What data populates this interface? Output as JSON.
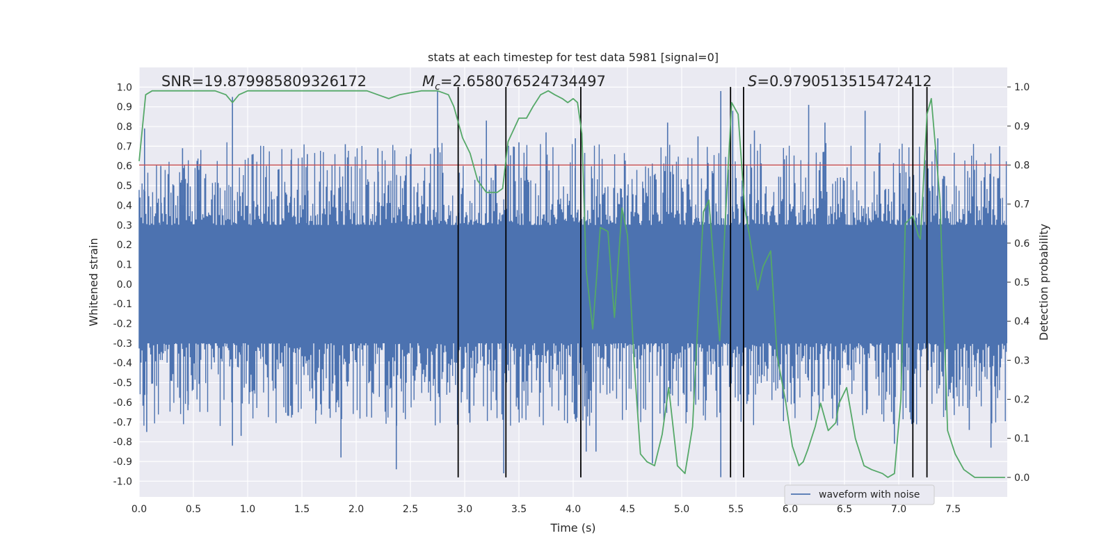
{
  "chart_data": {
    "type": "line",
    "title": "stats at each timestep for test data 5981 [signal=0]",
    "xlabel": "Time (s)",
    "ylabel_left": "Whitened strain",
    "ylabel_right": "Detection probability",
    "xlim": [
      0.0,
      8.0
    ],
    "ylim_left": [
      -1.08,
      1.1
    ],
    "ylim_right": [
      -0.05,
      1.05
    ],
    "x_ticks": [
      "0.0",
      "0.5",
      "1.0",
      "1.5",
      "2.0",
      "2.5",
      "3.0",
      "3.5",
      "4.0",
      "4.5",
      "5.0",
      "5.5",
      "6.0",
      "6.5",
      "7.0",
      "7.5"
    ],
    "y_ticks_left": [
      "1.0",
      "0.9",
      "0.8",
      "0.7",
      "0.6",
      "0.5",
      "0.4",
      "0.3",
      "0.2",
      "0.1",
      "0.0",
      "-0.1",
      "-0.2",
      "-0.3",
      "-0.4",
      "-0.5",
      "-0.6",
      "-0.7",
      "-0.8",
      "-0.9",
      "-1.0"
    ],
    "y_ticks_right": [
      "1.0",
      "0.9",
      "0.8",
      "0.7",
      "0.6",
      "0.5",
      "0.4",
      "0.3",
      "0.2",
      "0.1",
      "0.0"
    ],
    "grid": true,
    "annotations": {
      "snr": "SNR=19.879985809326172",
      "mc_symbol": "M",
      "mc_subscript": "c",
      "mc_value": "=2.658076524734497",
      "s_symbol": "S",
      "s_value": "=0.9790513515472412"
    },
    "threshold": {
      "value": 0.8,
      "color": "#c44e52"
    },
    "detection_lines_x": [
      2.94,
      3.38,
      4.07,
      5.45,
      5.57,
      7.13,
      7.26
    ],
    "series": [
      {
        "name": "waveform with noise",
        "color": "#4c72b0",
        "axis": "left",
        "core_amplitude": 0.3,
        "noise_seed": 5981,
        "noise_samples": 900,
        "spikes": [
          {
            "x": 0.05,
            "y": 0.79
          },
          {
            "x": 0.07,
            "y": -0.75
          },
          {
            "x": 0.2,
            "y": 0.6
          },
          {
            "x": 0.27,
            "y": 0.47
          },
          {
            "x": 0.4,
            "y": 0.69
          },
          {
            "x": 0.45,
            "y": -0.64
          },
          {
            "x": 0.55,
            "y": 0.58
          },
          {
            "x": 0.86,
            "y": 0.95
          },
          {
            "x": 0.86,
            "y": -0.82
          },
          {
            "x": 0.94,
            "y": -0.77
          },
          {
            "x": 1.05,
            "y": 0.66
          },
          {
            "x": 1.4,
            "y": 0.63
          },
          {
            "x": 1.55,
            "y": 0.66
          },
          {
            "x": 1.86,
            "y": -0.88
          },
          {
            "x": 1.9,
            "y": 0.71
          },
          {
            "x": 2.2,
            "y": 0.69
          },
          {
            "x": 2.37,
            "y": -0.94
          },
          {
            "x": 2.5,
            "y": 0.66
          },
          {
            "x": 2.72,
            "y": 0.69
          },
          {
            "x": 2.75,
            "y": 0.98
          },
          {
            "x": 3.2,
            "y": 0.83
          },
          {
            "x": 3.36,
            "y": -0.96
          },
          {
            "x": 3.5,
            "y": 0.72
          },
          {
            "x": 3.75,
            "y": 0.77
          },
          {
            "x": 4.02,
            "y": 0.74
          },
          {
            "x": 4.12,
            "y": -0.85
          },
          {
            "x": 4.21,
            "y": -0.85
          },
          {
            "x": 4.73,
            "y": -0.91
          },
          {
            "x": 4.87,
            "y": 0.82
          },
          {
            "x": 5.15,
            "y": 0.75
          },
          {
            "x": 5.36,
            "y": 0.98
          },
          {
            "x": 5.36,
            "y": -0.98
          },
          {
            "x": 5.47,
            "y": 0.88
          },
          {
            "x": 5.67,
            "y": 0.78
          },
          {
            "x": 6.17,
            "y": 0.91
          },
          {
            "x": 6.32,
            "y": 0.82
          },
          {
            "x": 6.69,
            "y": 0.88
          },
          {
            "x": 6.96,
            "y": -0.81
          },
          {
            "x": 7.12,
            "y": -0.71
          },
          {
            "x": 7.36,
            "y": 0.74
          },
          {
            "x": 7.65,
            "y": -0.74
          },
          {
            "x": 7.85,
            "y": -0.83
          },
          {
            "x": 7.93,
            "y": 0.7
          }
        ]
      },
      {
        "name": "detection probability",
        "color": "#55a868",
        "axis": "right",
        "x": [
          0.0,
          0.06,
          0.12,
          0.2,
          0.4,
          0.6,
          0.7,
          0.8,
          0.86,
          0.92,
          1.0,
          1.2,
          1.4,
          1.6,
          1.8,
          2.0,
          2.1,
          2.2,
          2.3,
          2.4,
          2.6,
          2.75,
          2.85,
          2.9,
          2.98,
          3.05,
          3.12,
          3.2,
          3.3,
          3.35,
          3.4,
          3.5,
          3.57,
          3.63,
          3.7,
          3.77,
          3.83,
          3.9,
          3.95,
          4.0,
          4.04,
          4.08,
          4.12,
          4.18,
          4.25,
          4.32,
          4.38,
          4.45,
          4.5,
          4.56,
          4.62,
          4.68,
          4.75,
          4.82,
          4.88,
          4.96,
          5.03,
          5.1,
          5.2,
          5.25,
          5.35,
          5.4,
          5.46,
          5.52,
          5.58,
          5.63,
          5.7,
          5.75,
          5.82,
          5.88,
          5.96,
          6.02,
          6.08,
          6.12,
          6.16,
          6.23,
          6.28,
          6.35,
          6.42,
          6.45,
          6.52,
          6.6,
          6.68,
          6.75,
          6.85,
          6.9,
          6.96,
          7.02,
          7.06,
          7.13,
          7.18,
          7.2,
          7.26,
          7.3,
          7.38,
          7.45,
          7.52,
          7.6,
          7.7,
          7.98
        ],
        "y": [
          0.81,
          0.98,
          0.99,
          0.99,
          0.99,
          0.99,
          0.99,
          0.98,
          0.96,
          0.98,
          0.99,
          0.99,
          0.99,
          0.99,
          0.99,
          0.99,
          0.99,
          0.98,
          0.97,
          0.98,
          0.99,
          0.99,
          0.98,
          0.95,
          0.87,
          0.83,
          0.76,
          0.73,
          0.73,
          0.74,
          0.86,
          0.92,
          0.92,
          0.95,
          0.98,
          0.99,
          0.98,
          0.97,
          0.96,
          0.97,
          0.96,
          0.88,
          0.53,
          0.38,
          0.64,
          0.63,
          0.41,
          0.69,
          0.62,
          0.3,
          0.06,
          0.04,
          0.03,
          0.11,
          0.23,
          0.03,
          0.01,
          0.13,
          0.68,
          0.71,
          0.35,
          0.65,
          0.96,
          0.93,
          0.69,
          0.61,
          0.48,
          0.54,
          0.58,
          0.31,
          0.19,
          0.08,
          0.03,
          0.04,
          0.07,
          0.13,
          0.19,
          0.12,
          0.14,
          0.19,
          0.23,
          0.1,
          0.03,
          0.02,
          0.01,
          0.0,
          0.01,
          0.2,
          0.65,
          0.67,
          0.62,
          0.61,
          0.93,
          0.97,
          0.71,
          0.12,
          0.06,
          0.02,
          0.0,
          0.0
        ]
      }
    ],
    "legend": {
      "label": "waveform with noise",
      "placement": "lower-right"
    }
  }
}
